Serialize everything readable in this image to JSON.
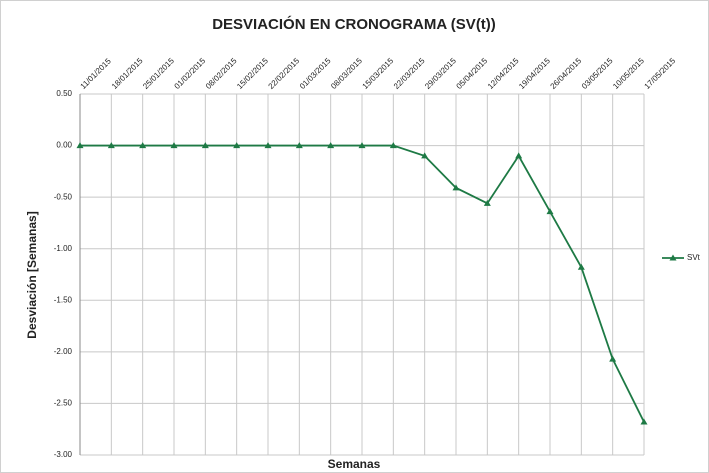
{
  "chart_data": {
    "type": "line",
    "title": "DESVIACIÓN EN CRONOGRAMA (SV(t))",
    "x_label": "Semanas",
    "y_label": "Desviación [Semanas]",
    "categories": [
      "11/01/2015",
      "18/01/2015",
      "25/01/2015",
      "01/02/2015",
      "08/02/2015",
      "15/02/2015",
      "22/02/2015",
      "01/03/2015",
      "08/03/2015",
      "15/03/2015",
      "22/03/2015",
      "29/03/2015",
      "05/04/2015",
      "12/04/2015",
      "19/04/2015",
      "26/04/2015",
      "03/05/2015",
      "10/05/2015",
      "17/05/2015"
    ],
    "series": [
      {
        "name": "SVt",
        "color": "#1e7a45",
        "values": [
          0,
          0,
          0,
          0,
          0,
          0,
          0,
          0,
          0,
          0,
          0,
          -0.1,
          -0.41,
          -0.56,
          -0.1,
          -0.64,
          -1.18,
          -2.07,
          -2.68
        ]
      }
    ],
    "ylim": [
      -3,
      0.5
    ],
    "yticks": [
      {
        "value": -3,
        "label": "-3.00"
      },
      {
        "value": -2.5,
        "label": "-2.50"
      },
      {
        "value": -2,
        "label": "-2.00"
      },
      {
        "value": -1.5,
        "label": "-1.50"
      },
      {
        "value": -1,
        "label": "-1.00"
      },
      {
        "value": -0.5,
        "label": "-0.50"
      },
      {
        "value": 0,
        "label": "0.00"
      },
      {
        "value": 0.5,
        "label": "0.50"
      }
    ],
    "grid": true,
    "legend": "right"
  }
}
